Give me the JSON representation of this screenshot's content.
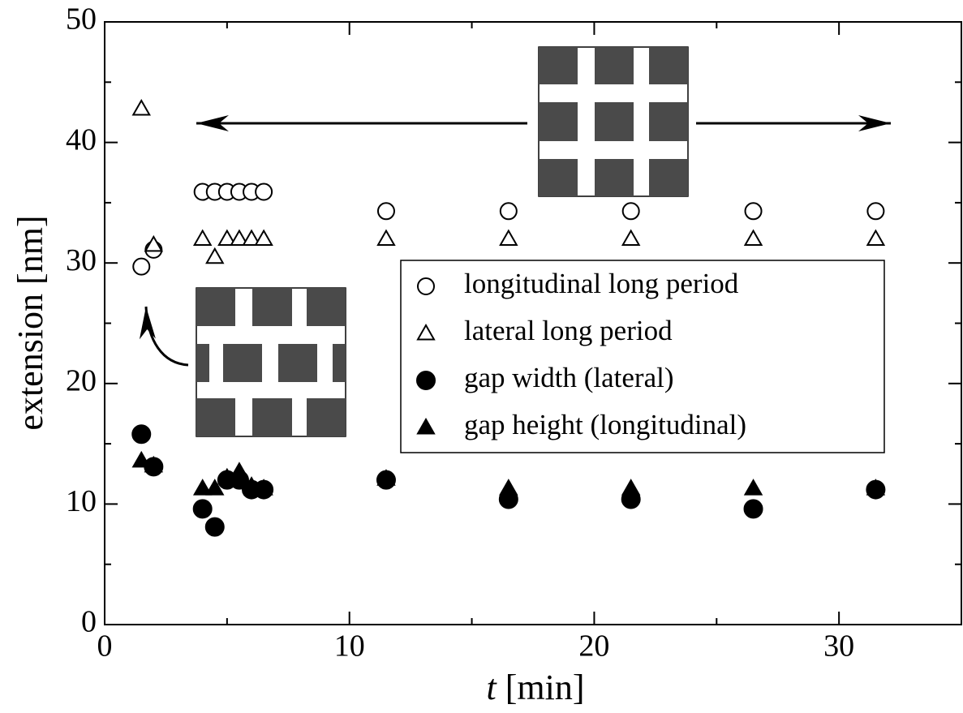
{
  "chart_data": {
    "type": "scatter",
    "xlabel": "t [min]",
    "ylabel": "extension [nm]",
    "xlim": [
      0,
      35
    ],
    "ylim": [
      0,
      50
    ],
    "xticks": [
      0,
      10,
      20,
      30
    ],
    "yticks": [
      0,
      10,
      20,
      30,
      40,
      50
    ],
    "x": [
      1.5,
      2,
      4,
      4.5,
      5,
      5.5,
      6,
      6.5,
      11.5,
      16.5,
      21.5,
      26.5,
      31.5
    ],
    "series": [
      {
        "name": "longitudinal long period",
        "color": "#000000",
        "marker": "circle",
        "filled": false,
        "values": [
          29.7,
          31.1,
          35.9,
          35.9,
          35.9,
          35.9,
          35.9,
          35.9,
          34.3,
          34.3,
          34.3,
          34.3,
          34.3
        ]
      },
      {
        "name": "lateral long period",
        "color": "#000000",
        "marker": "triangle",
        "filled": false,
        "values": [
          42.8,
          31.5,
          32,
          30.5,
          32,
          32,
          32,
          32,
          32,
          32,
          32,
          32,
          32
        ]
      },
      {
        "name": "gap width (lateral)",
        "color": "#000000",
        "marker": "circle",
        "filled": true,
        "values": [
          15.8,
          13.1,
          9.6,
          8.1,
          12,
          12,
          11.2,
          11.2,
          12,
          10.4,
          10.4,
          9.6,
          11.2
        ]
      },
      {
        "name": "gap height (longitudinal)",
        "color": "#000000",
        "marker": "triangle",
        "filled": true,
        "values": [
          13.6,
          13.2,
          11.3,
          11.3,
          12.2,
          12.7,
          11.5,
          11.3,
          12.1,
          11.3,
          11.3,
          11.3,
          11.3
        ]
      }
    ]
  }
}
